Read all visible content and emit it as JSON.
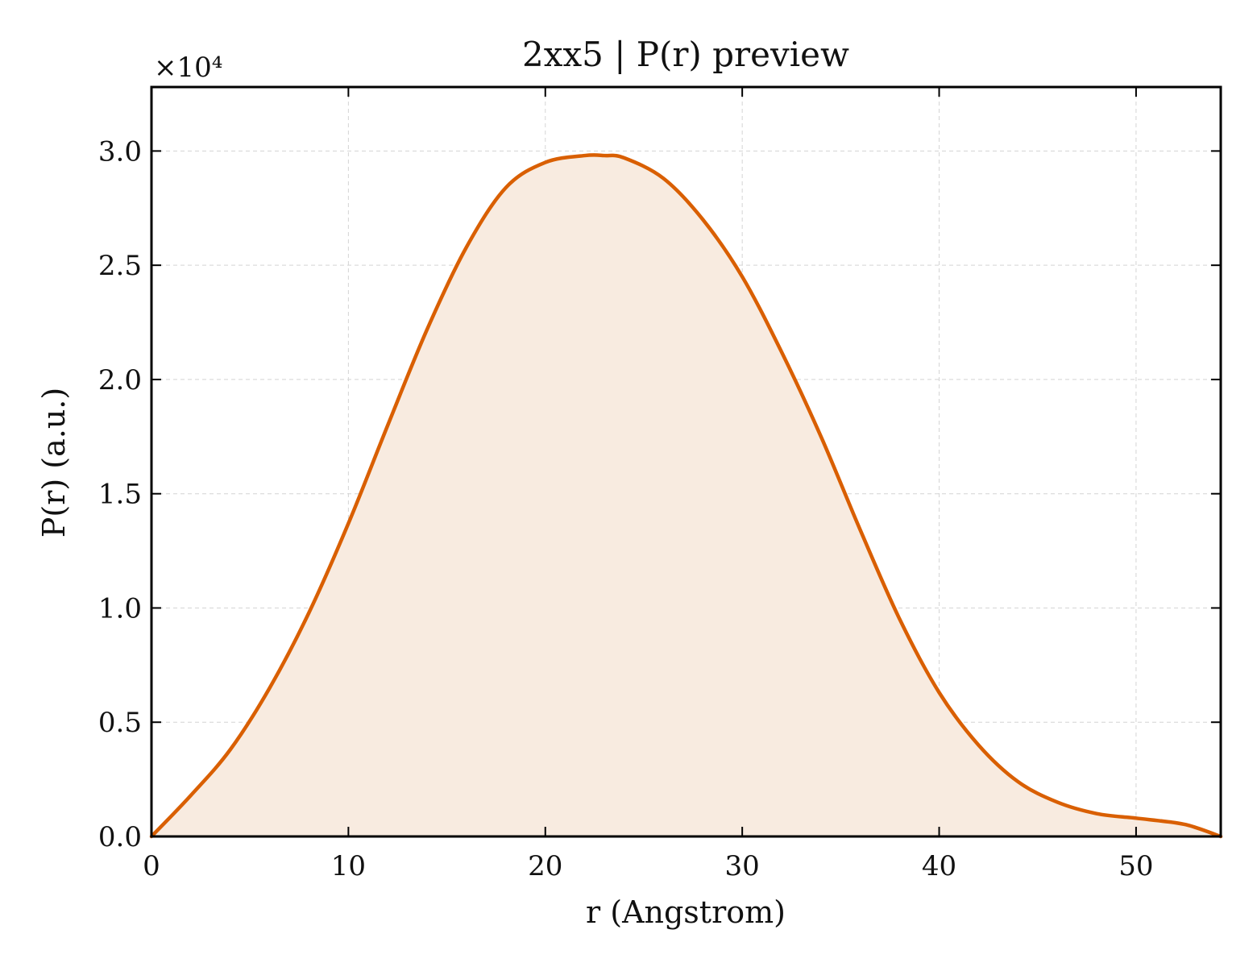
{
  "chart_data": {
    "type": "area",
    "title": "2xx5 | P(r) preview",
    "xlabel": "r (Angstrom)",
    "ylabel": "P(r) (a.u.)",
    "y_multiplier_label": "×10⁴",
    "xlim": [
      0,
      54.3
    ],
    "ylim": [
      0,
      3.28
    ],
    "y_unit_scale": 10000,
    "xticks": [
      0,
      10,
      20,
      30,
      40,
      50
    ],
    "xtick_labels": [
      "0",
      "10",
      "20",
      "30",
      "40",
      "50"
    ],
    "yticks": [
      0,
      0.5,
      1.0,
      1.5,
      2.0,
      2.5,
      3.0
    ],
    "ytick_labels": [
      "0.0",
      "0.5",
      "1.0",
      "1.5",
      "2.0",
      "2.5",
      "3.0"
    ],
    "grid": true,
    "legend": "none",
    "series": [
      {
        "line_color": "#d95f02",
        "fill_color": "#f8ebe0",
        "x": [
          0,
          2,
          4,
          6,
          8,
          10,
          12,
          14,
          16,
          18,
          20,
          22,
          23,
          24,
          26,
          28,
          30,
          32,
          34,
          36,
          38,
          40,
          42,
          44,
          46,
          48,
          50,
          52,
          53,
          54.3
        ],
        "y": [
          0.0,
          0.18,
          0.38,
          0.65,
          0.98,
          1.37,
          1.8,
          2.22,
          2.58,
          2.84,
          2.95,
          2.98,
          2.98,
          2.97,
          2.88,
          2.7,
          2.45,
          2.12,
          1.75,
          1.34,
          0.95,
          0.63,
          0.4,
          0.24,
          0.15,
          0.1,
          0.08,
          0.06,
          0.04,
          0.0
        ]
      }
    ]
  }
}
